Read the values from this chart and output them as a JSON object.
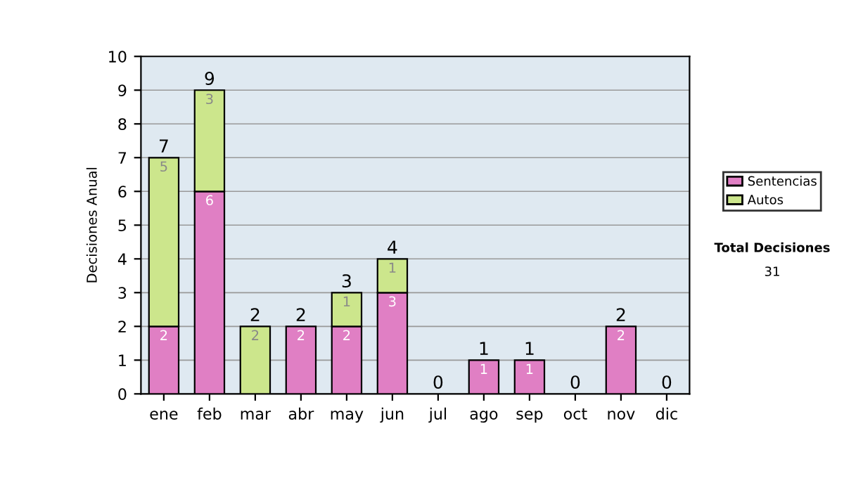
{
  "chart_data": {
    "type": "bar",
    "stacked": true,
    "ylabel": "Decisiones Anual",
    "categories": [
      "ene",
      "feb",
      "mar",
      "abr",
      "may",
      "jun",
      "jul",
      "ago",
      "sep",
      "oct",
      "nov",
      "dic"
    ],
    "series": [
      {
        "name": "Sentencias",
        "color": "#e07fc4",
        "values": [
          2,
          6,
          0,
          2,
          2,
          3,
          0,
          1,
          1,
          0,
          2,
          0
        ],
        "value_labels": [
          "2",
          "6",
          null,
          "2",
          "2",
          "3",
          null,
          "1",
          "1",
          null,
          "2",
          null
        ]
      },
      {
        "name": "Autos",
        "color": "#cce68c",
        "values": [
          5,
          3,
          2,
          0,
          1,
          1,
          0,
          0,
          0,
          0,
          0,
          0
        ],
        "value_labels": [
          "5",
          "3",
          "2",
          null,
          "1",
          "1",
          null,
          null,
          null,
          null,
          null,
          null
        ]
      }
    ],
    "totals": [
      "7",
      "9",
      "2",
      "2",
      "3",
      "4",
      "0",
      "1",
      "1",
      "0",
      "2",
      "0"
    ],
    "ylim": [
      0,
      10
    ],
    "yticks": [
      0,
      1,
      2,
      3,
      4,
      5,
      6,
      7,
      8,
      9,
      10
    ],
    "grid": "y",
    "legend": "right",
    "annotations": [
      "Total Decisiones",
      "31"
    ]
  }
}
